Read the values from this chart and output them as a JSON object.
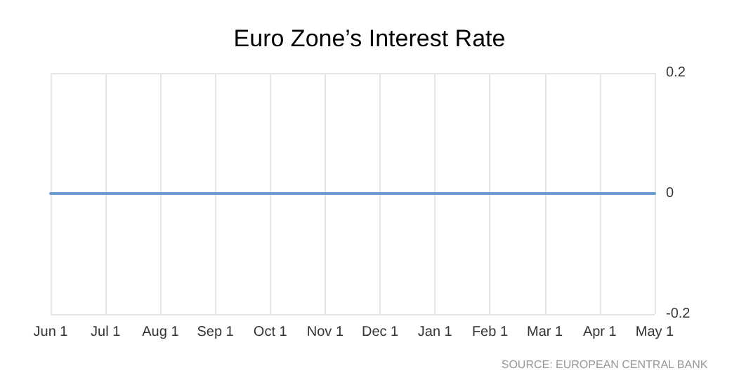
{
  "chart_data": {
    "type": "line",
    "title": "Euro Zone’s Interest Rate",
    "categories": [
      "Jun 1",
      "Jul 1",
      "Aug 1",
      "Sep 1",
      "Oct 1",
      "Nov 1",
      "Dec 1",
      "Jan 1",
      "Feb 1",
      "Mar 1",
      "Apr 1",
      "May 1"
    ],
    "series": [
      {
        "color": "#6a9bd1",
        "values": [
          0,
          0,
          0,
          0,
          0,
          0,
          0,
          0,
          0,
          0,
          0,
          0
        ]
      }
    ],
    "ylim": [
      -0.2,
      0.2
    ],
    "yticks": [
      -0.2,
      0,
      0.2
    ],
    "grid": true,
    "marker": "none",
    "line_style": "solid",
    "annotations": [
      "SOURCE: EUROPEAN CENTRAL BANK"
    ]
  }
}
